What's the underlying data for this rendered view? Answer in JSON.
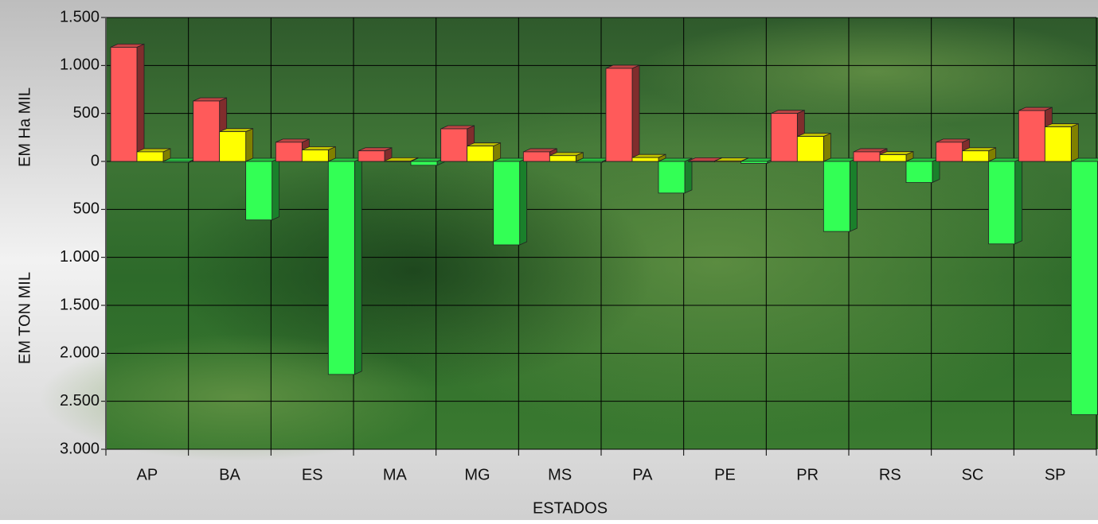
{
  "chart_data": {
    "type": "bar",
    "y_labels": [
      "EM Ha MIL",
      "EM TON MIL"
    ],
    "x_label": "ESTADOS",
    "categories": [
      "AP",
      "BA",
      "ES",
      "MA",
      "MG",
      "MS",
      "PA",
      "PE",
      "PR",
      "RS",
      "SC",
      "SP"
    ],
    "series": [
      {
        "color": "#ff5a5a",
        "values": [
          1190,
          630,
          200,
          110,
          340,
          100,
          970,
          5,
          500,
          100,
          200,
          530
        ]
      },
      {
        "color": "#ffff00",
        "values": [
          100,
          310,
          120,
          5,
          160,
          60,
          40,
          3,
          260,
          70,
          110,
          360
        ]
      },
      {
        "color": "#33ff55",
        "values": [
          -10,
          -610,
          -2220,
          -40,
          -870,
          -10,
          -330,
          -20,
          -730,
          -220,
          -860,
          -2640
        ]
      }
    ],
    "ylim": [
      -3000,
      1500
    ],
    "yticks": [
      {
        "value": 1500,
        "label": "1.500"
      },
      {
        "value": 1000,
        "label": "1.000"
      },
      500,
      0,
      {
        "value": -500,
        "label": "500"
      },
      {
        "value": -1000,
        "label": "1.000"
      },
      {
        "value": -1500,
        "label": "1.500"
      },
      {
        "value": -2000,
        "label": "2.000"
      },
      {
        "value": -2500,
        "label": "2.500"
      },
      {
        "value": -3000,
        "label": "3.000"
      }
    ],
    "grid": true
  }
}
